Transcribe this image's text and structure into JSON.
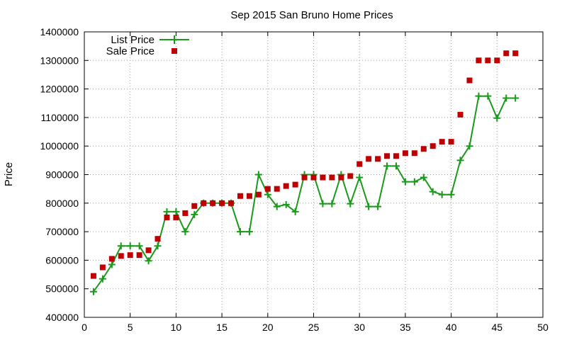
{
  "chart_data": {
    "type": "line",
    "title": "Sep 2015 San Bruno Home Prices",
    "xlabel": "",
    "ylabel": "Price",
    "xlim": [
      0,
      50
    ],
    "ylim": [
      400000,
      1400000
    ],
    "xticks": [
      0,
      5,
      10,
      15,
      20,
      25,
      30,
      35,
      40,
      45,
      50
    ],
    "yticks": [
      400000,
      500000,
      600000,
      700000,
      800000,
      900000,
      1000000,
      1100000,
      1200000,
      1300000,
      1400000
    ],
    "grid": true,
    "legend_position": "top-left",
    "series": [
      {
        "name": "List Price",
        "style": "line+cross",
        "color": "#1a9a1a",
        "x": [
          1,
          2,
          3,
          4,
          5,
          6,
          7,
          8,
          9,
          10,
          11,
          12,
          13,
          14,
          15,
          16,
          17,
          18,
          19,
          20,
          21,
          22,
          23,
          24,
          25,
          26,
          27,
          28,
          29,
          30,
          31,
          32,
          33,
          34,
          35,
          36,
          37,
          38,
          39,
          40,
          41,
          42,
          43,
          44,
          45,
          46,
          47
        ],
        "y": [
          490000,
          535000,
          585000,
          650000,
          650000,
          650000,
          598000,
          650000,
          770000,
          770000,
          700000,
          760000,
          800000,
          800000,
          800000,
          800000,
          700000,
          700000,
          900000,
          830000,
          788000,
          795000,
          770000,
          900000,
          900000,
          798000,
          798000,
          900000,
          798000,
          890000,
          788000,
          788000,
          930000,
          930000,
          875000,
          875000,
          890000,
          840000,
          830000,
          830000,
          950000,
          1000000,
          1175000,
          1175000,
          1098000,
          1168000,
          1168000
        ]
      },
      {
        "name": "Sale Price",
        "style": "square",
        "color": "#c00000",
        "x": [
          1,
          2,
          3,
          4,
          5,
          6,
          7,
          8,
          9,
          10,
          11,
          12,
          13,
          14,
          15,
          16,
          17,
          18,
          19,
          20,
          21,
          22,
          23,
          24,
          25,
          26,
          27,
          28,
          29,
          30,
          31,
          32,
          33,
          34,
          35,
          36,
          37,
          38,
          39,
          40,
          41,
          42,
          43,
          44,
          45,
          46,
          47
        ],
        "y": [
          545000,
          575000,
          605000,
          615000,
          618000,
          618000,
          635000,
          675000,
          750000,
          750000,
          765000,
          790000,
          800000,
          800000,
          800000,
          800000,
          825000,
          825000,
          830000,
          850000,
          850000,
          860000,
          865000,
          890000,
          890000,
          890000,
          890000,
          890000,
          895000,
          937000,
          955000,
          955000,
          965000,
          965000,
          975000,
          975000,
          990000,
          1000000,
          1015000,
          1015000,
          1110000,
          1230000,
          1300000,
          1300000,
          1300000,
          1325000,
          1325000
        ]
      }
    ]
  }
}
